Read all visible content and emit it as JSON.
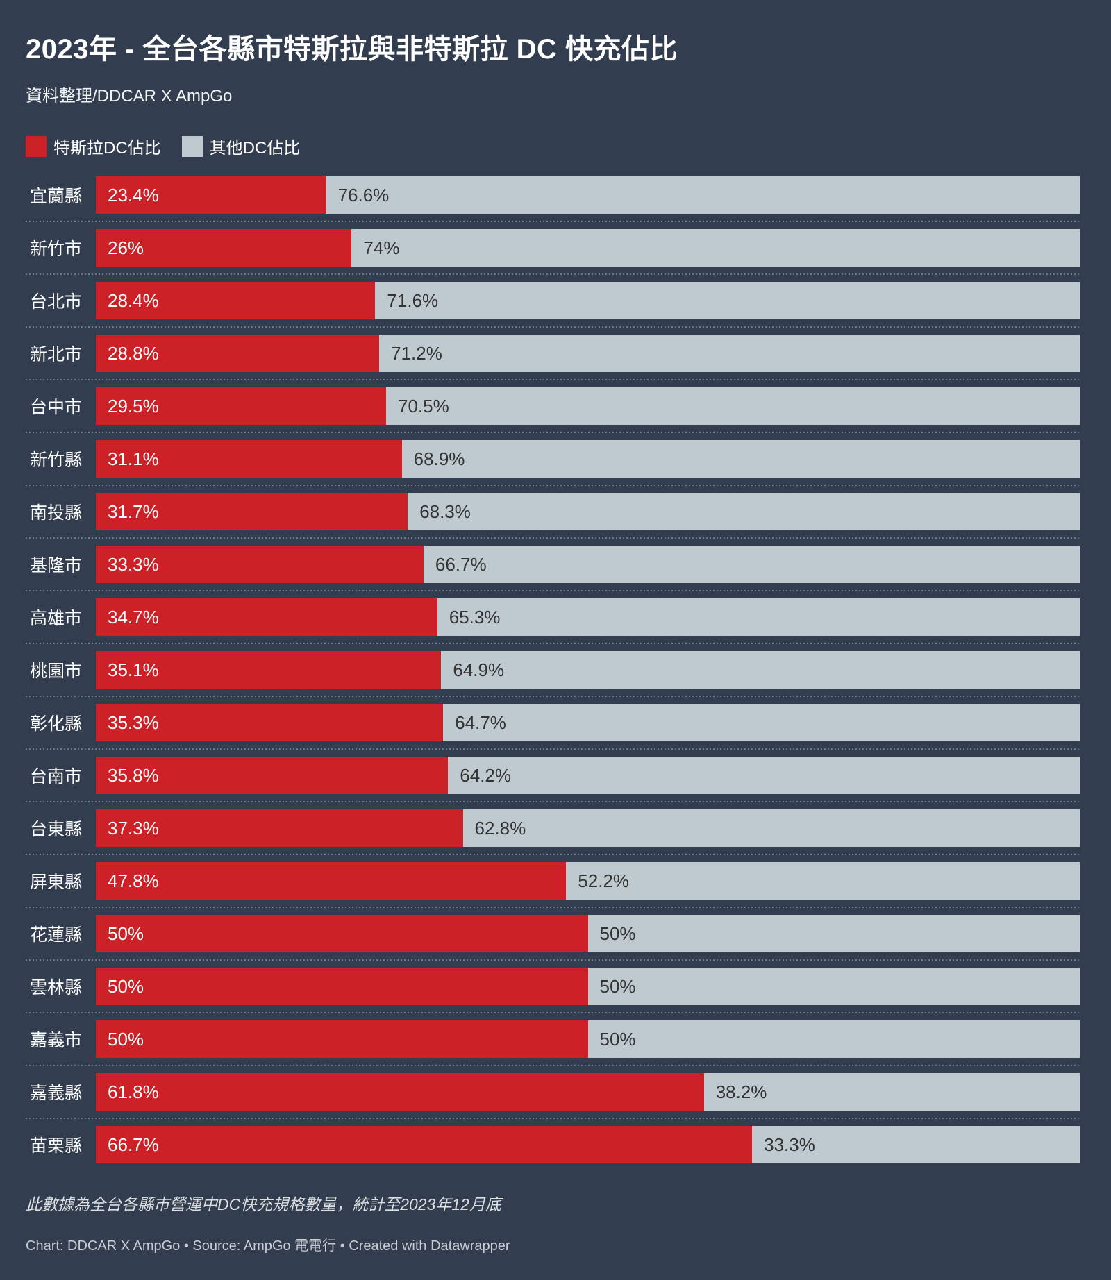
{
  "colors": {
    "background": "#323d4f",
    "tesla_red": "#cb2127",
    "other_gray": "#bfcad0",
    "bar_text_on_red": "#ffffff",
    "bar_text_on_gray": "#333333",
    "separator_dot": "#717a87"
  },
  "chart_data": {
    "type": "bar",
    "orientation": "horizontal",
    "stacked": true,
    "grid": false,
    "legend_position": "top-left",
    "xlim": [
      0,
      100
    ],
    "title": "2023年 - 全台各縣市特斯拉與非特斯拉 DC 快充佔比",
    "subtitle": "資料整理/DDCAR X AmpGo",
    "legend": [
      {
        "label": "特斯拉DC佔比",
        "color": "#cb2127"
      },
      {
        "label": "其他DC佔比",
        "color": "#bfcad0"
      }
    ],
    "categories": [
      "宜蘭縣",
      "新竹市",
      "台北市",
      "新北市",
      "台中市",
      "新竹縣",
      "南投縣",
      "基隆市",
      "高雄市",
      "桃園市",
      "彰化縣",
      "台南市",
      "台東縣",
      "屏東縣",
      "花蓮縣",
      "雲林縣",
      "嘉義市",
      "嘉義縣",
      "苗栗縣"
    ],
    "series": [
      {
        "name": "特斯拉DC佔比",
        "values": [
          23.4,
          26,
          28.4,
          28.8,
          29.5,
          31.1,
          31.7,
          33.3,
          34.7,
          35.1,
          35.3,
          35.8,
          37.3,
          47.8,
          50,
          50,
          50,
          61.8,
          66.7
        ],
        "labels": [
          "23.4%",
          "26%",
          "28.4%",
          "28.8%",
          "29.5%",
          "31.1%",
          "31.7%",
          "33.3%",
          "34.7%",
          "35.1%",
          "35.3%",
          "35.8%",
          "37.3%",
          "47.8%",
          "50%",
          "50%",
          "50%",
          "61.8%",
          "66.7%"
        ]
      },
      {
        "name": "其他DC佔比",
        "values": [
          76.6,
          74,
          71.6,
          71.2,
          70.5,
          68.9,
          68.3,
          66.7,
          65.3,
          64.9,
          64.7,
          64.2,
          62.8,
          52.2,
          50,
          50,
          50,
          38.2,
          33.3
        ],
        "labels": [
          "76.6%",
          "74%",
          "71.6%",
          "71.2%",
          "70.5%",
          "68.9%",
          "68.3%",
          "66.7%",
          "65.3%",
          "64.9%",
          "64.7%",
          "64.2%",
          "62.8%",
          "52.2%",
          "50%",
          "50%",
          "50%",
          "38.2%",
          "33.3%"
        ]
      }
    ],
    "footnote": "此數據為全台各縣市營運中DC快充規格數量，統計至2023年12月底",
    "footer": "Chart: DDCAR X AmpGo • Source: AmpGo 電電行 • Created with Datawrapper"
  }
}
